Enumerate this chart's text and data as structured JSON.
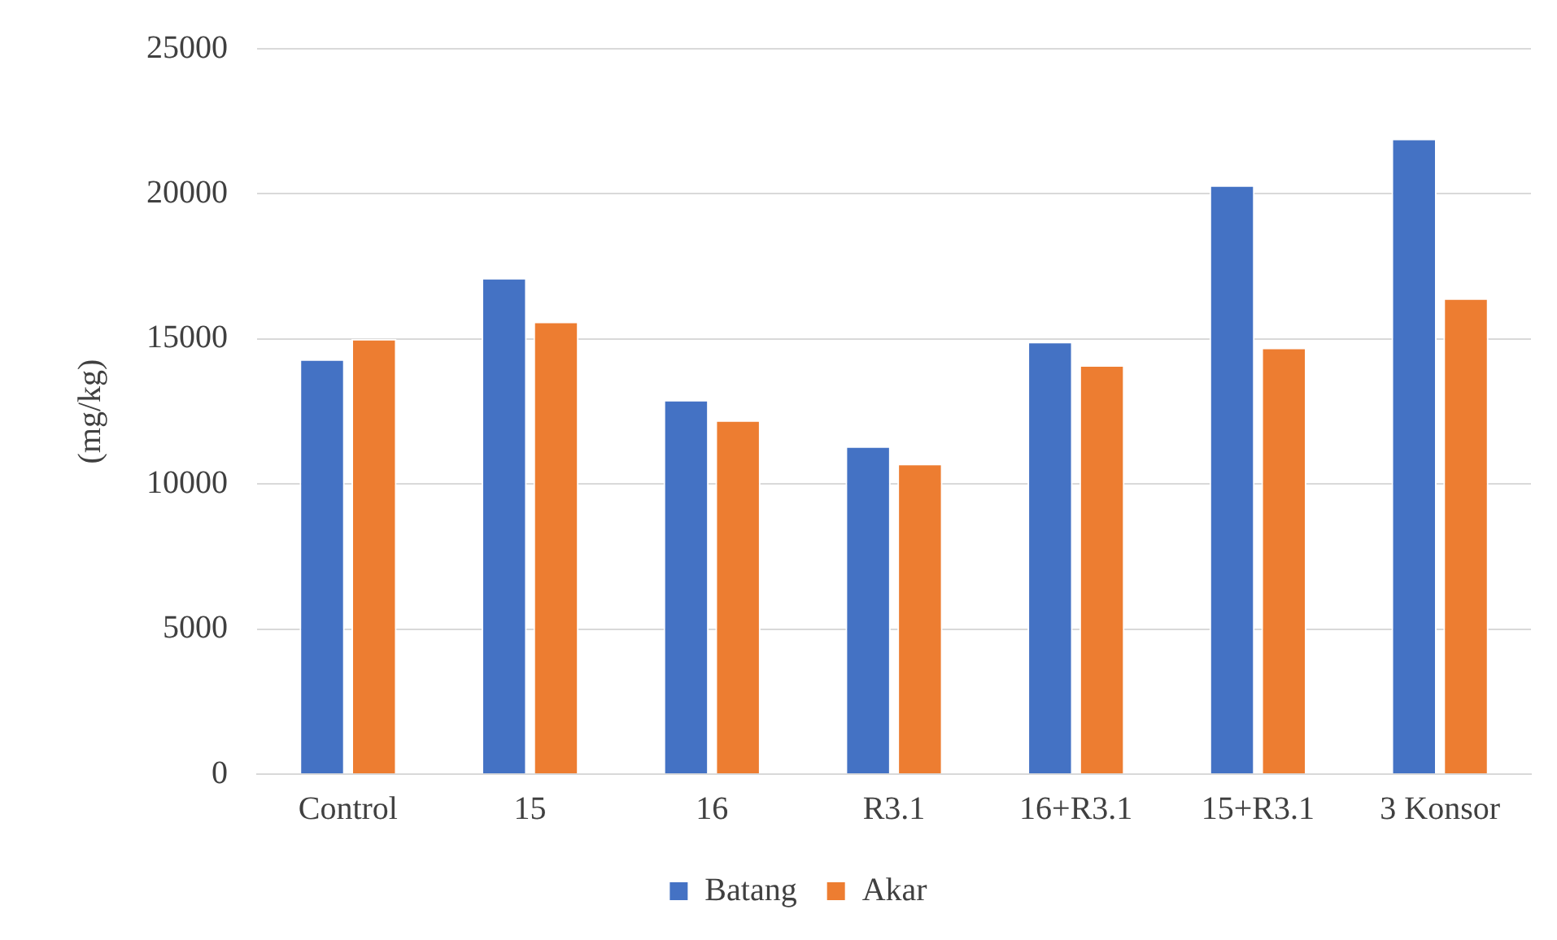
{
  "chart_data": {
    "type": "bar",
    "ylabel": "(mg/kg)",
    "categories": [
      "Control",
      "15",
      "16",
      "R3.1",
      "16+R3.1",
      "15+R3.1",
      "3 Konsor"
    ],
    "series": [
      {
        "name": "Batang",
        "color": "#4472c4",
        "values": [
          14300,
          17100,
          12900,
          11300,
          14900,
          20300,
          21900
        ]
      },
      {
        "name": "Akar",
        "color": "#ed7d31",
        "values": [
          15000,
          15600,
          12200,
          10700,
          14100,
          14700,
          16400
        ]
      }
    ],
    "ylim": [
      0,
      25000
    ],
    "yticks": [
      0,
      5000,
      10000,
      15000,
      20000,
      25000
    ],
    "grid": "y",
    "legend": "bottom"
  }
}
